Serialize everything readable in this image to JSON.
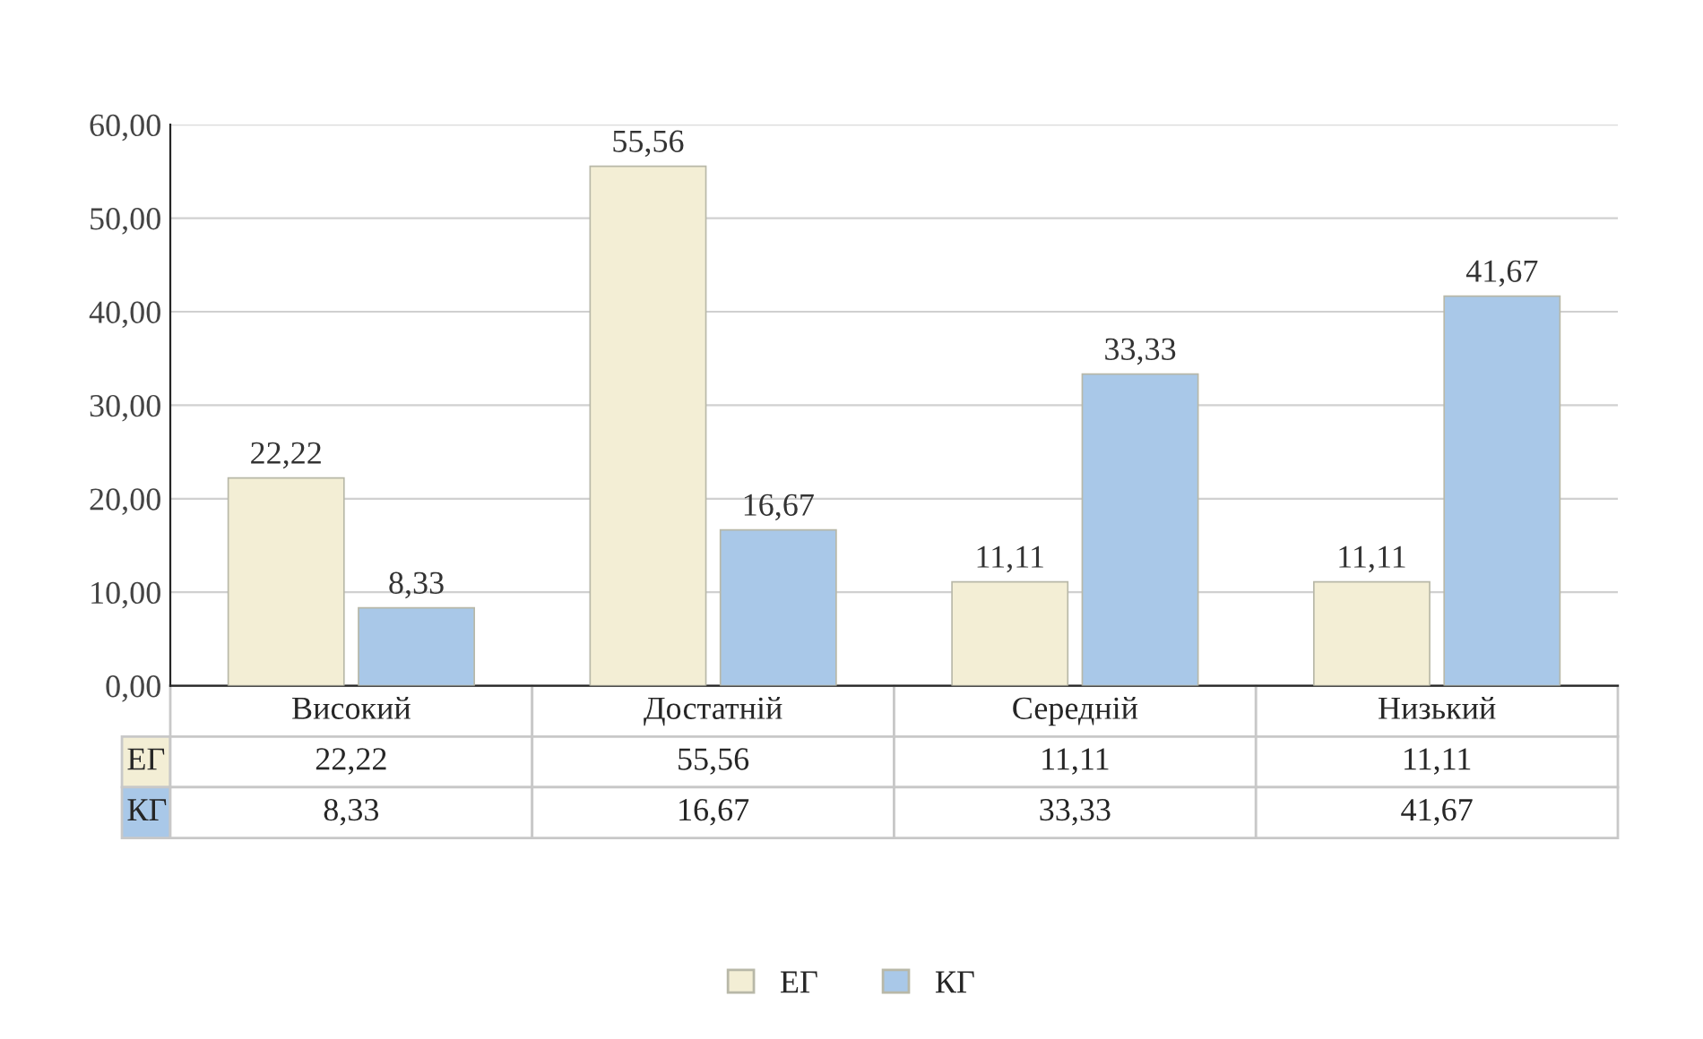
{
  "chart_data": {
    "type": "bar",
    "categories": [
      "Високий",
      "Достатній",
      "Середній",
      "Низький"
    ],
    "series": [
      {
        "name": "ЕГ",
        "color": "#f3eed5",
        "values": [
          22.22,
          55.56,
          11.11,
          11.11
        ],
        "value_labels": [
          "22,22",
          "55,56",
          "11,11",
          "11,11"
        ]
      },
      {
        "name": "КГ",
        "color": "#a9c8e8",
        "values": [
          8.33,
          16.67,
          33.33,
          41.67
        ],
        "value_labels": [
          "8,33",
          "16,67",
          "33,33",
          "41,67"
        ]
      }
    ],
    "ylim": [
      0,
      60
    ],
    "yticks": [
      {
        "value": 0,
        "label": "0,00"
      },
      {
        "value": 10,
        "label": "10,00"
      },
      {
        "value": 20,
        "label": "20,00"
      },
      {
        "value": 30,
        "label": "30,00"
      },
      {
        "value": 40,
        "label": "40,00"
      },
      {
        "value": 50,
        "label": "50,00"
      },
      {
        "value": 60,
        "label": "60,00"
      }
    ],
    "grid": "y",
    "legend": "bottom"
  }
}
